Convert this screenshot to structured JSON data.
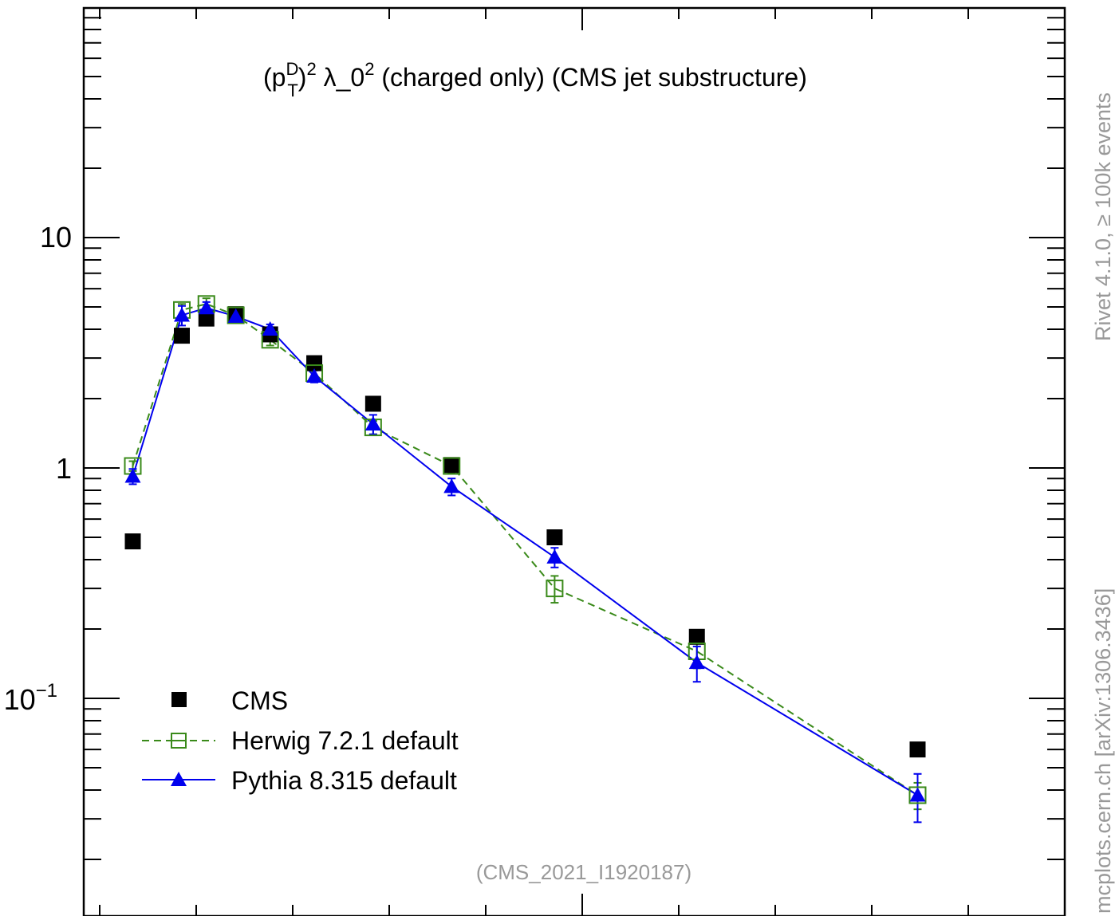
{
  "chart_data": {
    "type": "scatter",
    "title": "(p_T^D)^2 λ_0^2 (charged only) (CMS jet substructure)",
    "title_parts": {
      "open": "(p",
      "sup": "D",
      "sub": "T",
      "close": ")",
      "sq1": "2",
      "lambda_text": " λ_0",
      "sq2": "2",
      "rest": " (charged only) (CMS jet substructure)"
    },
    "y_scale": "log",
    "ylim": [
      0.02,
      90
    ],
    "xlim": [
      0,
      1
    ],
    "y_tick_labels": {
      "ten": "10",
      "one": "1",
      "tenth_base": "10",
      "tenth_exp": "−1"
    },
    "side_labels": {
      "top": "Rivet 4.1.0, ≥ 100k events",
      "bottom": "mcplots.cern.ch [arXiv:1306.3436]"
    },
    "watermark": "(CMS_2021_I1920187)",
    "legend_position": "bottom-left",
    "series": [
      {
        "name": "CMS",
        "marker": "filled-square",
        "color": "#000000",
        "x": [
          0.05,
          0.1,
          0.125,
          0.155,
          0.19,
          0.235,
          0.295,
          0.375,
          0.48,
          0.625,
          0.85
        ],
        "y": [
          0.48,
          3.75,
          4.45,
          4.65,
          3.8,
          2.85,
          1.9,
          1.03,
          0.5,
          0.185,
          0.06
        ]
      },
      {
        "name": "Herwig 7.2.1 default",
        "marker": "open-square",
        "line": "dashed",
        "color": "#3a8a1a",
        "x": [
          0.05,
          0.1,
          0.125,
          0.155,
          0.19,
          0.235,
          0.295,
          0.375,
          0.48,
          0.625,
          0.85
        ],
        "y": [
          1.02,
          4.85,
          5.15,
          4.6,
          3.6,
          2.58,
          1.5,
          1.02,
          0.3,
          0.16,
          0.038
        ],
        "err": [
          0.05,
          0.3,
          0.3,
          0.2,
          0.2,
          0.15,
          0.1,
          0.07,
          0.04,
          0.025,
          0.005
        ]
      },
      {
        "name": "Pythia 8.315 default",
        "marker": "filled-triangle",
        "line": "solid",
        "color": "#0000ee",
        "x": [
          0.05,
          0.1,
          0.125,
          0.155,
          0.19,
          0.235,
          0.295,
          0.375,
          0.48,
          0.625,
          0.85
        ],
        "y": [
          0.92,
          4.6,
          4.95,
          4.55,
          4.0,
          2.5,
          1.55,
          0.83,
          0.41,
          0.143,
          0.038
        ],
        "err": [
          0.07,
          0.45,
          0.3,
          0.2,
          0.2,
          0.15,
          0.15,
          0.07,
          0.04,
          0.025,
          0.009
        ]
      }
    ]
  }
}
